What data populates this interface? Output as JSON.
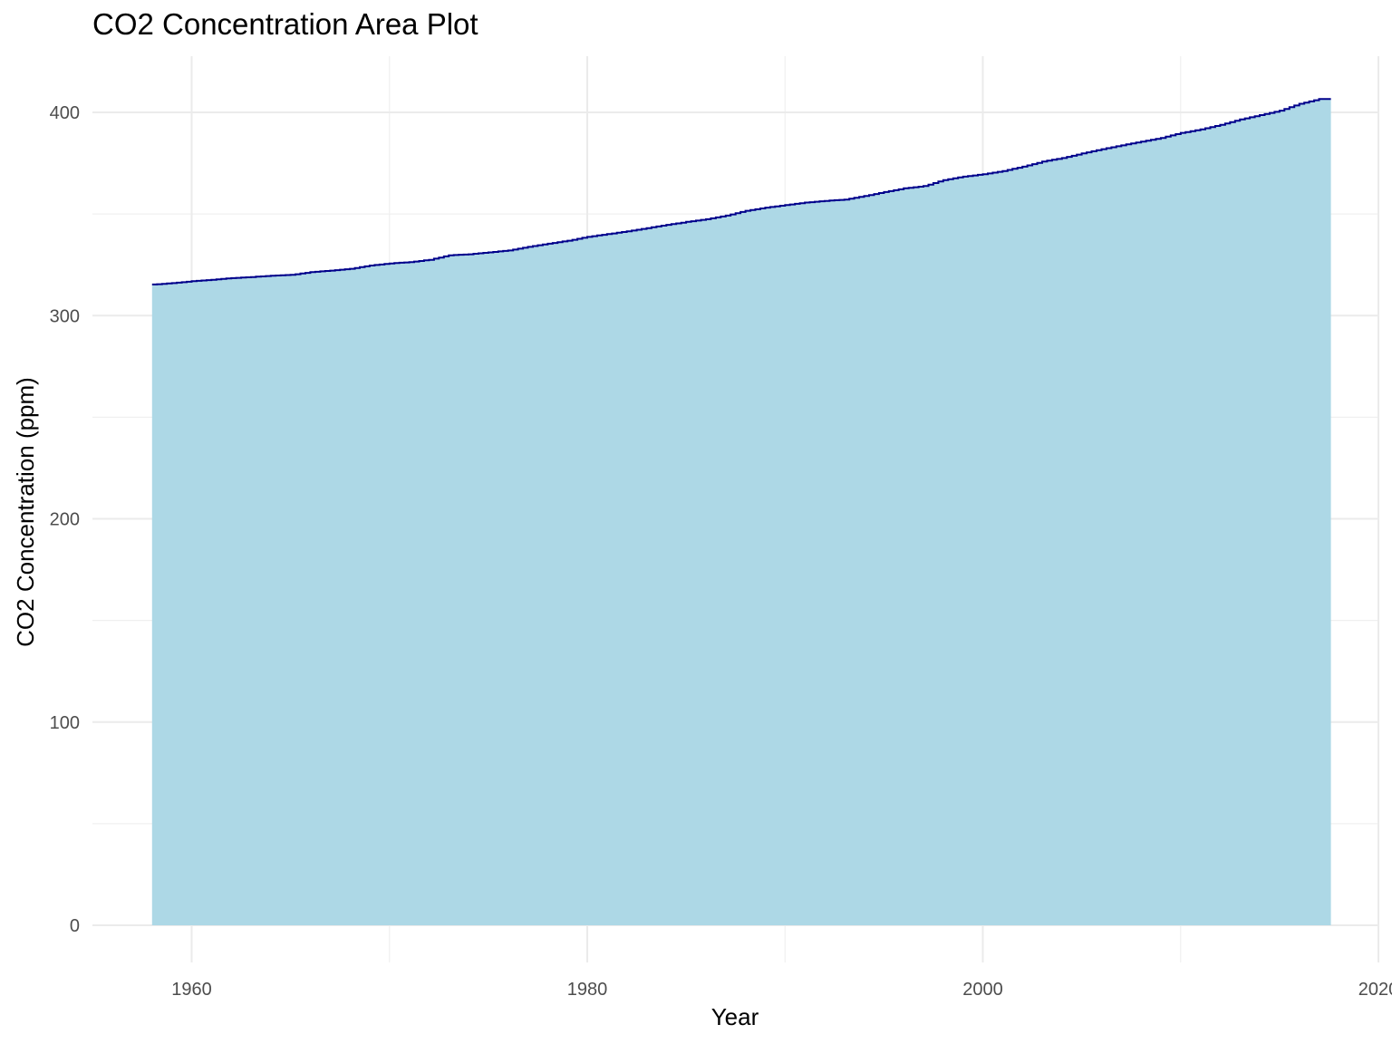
{
  "chart_data": {
    "type": "area",
    "title": "CO2 Concentration Area Plot",
    "xlabel": "Year",
    "ylabel": "CO2 Concentration (ppm)",
    "xlim": [
      1955,
      2020
    ],
    "ylim": [
      0,
      427
    ],
    "x_ticks": [
      1960,
      1980,
      2000,
      2020
    ],
    "x_tick_labels": [
      "1960",
      "1980",
      "2000",
      "2020"
    ],
    "y_ticks": [
      0,
      100,
      200,
      300,
      400
    ],
    "y_tick_labels": [
      "0",
      "100",
      "200",
      "300",
      "400"
    ],
    "grid": true,
    "legend": "none",
    "fill_color": "#add8e6",
    "line_color": "#00008b",
    "series": [
      {
        "x": [
          1958,
          1959,
          1960,
          1961,
          1962,
          1963,
          1964,
          1965,
          1966,
          1967,
          1968,
          1969,
          1970,
          1971,
          1972,
          1973,
          1974,
          1975,
          1976,
          1977,
          1978,
          1979,
          1980,
          1981,
          1982,
          1983,
          1984,
          1985,
          1986,
          1987,
          1988,
          1989,
          1990,
          1991,
          1992,
          1993,
          1994,
          1995,
          1996,
          1997,
          1998,
          1999,
          2000,
          2001,
          2002,
          2003,
          2004,
          2005,
          2006,
          2007,
          2008,
          2009,
          2010,
          2011,
          2012,
          2013,
          2014,
          2015,
          2016,
          2017
        ],
        "values": [
          315.3,
          315.97,
          316.91,
          317.64,
          318.45,
          318.99,
          319.62,
          320.04,
          321.38,
          322.16,
          323.04,
          324.62,
          325.68,
          326.32,
          327.45,
          329.68,
          330.18,
          331.11,
          332.04,
          333.83,
          335.4,
          336.84,
          338.75,
          340.11,
          341.45,
          343.05,
          344.65,
          346.12,
          347.42,
          349.19,
          351.57,
          353.12,
          354.39,
          355.61,
          356.45,
          357.1,
          358.83,
          360.82,
          362.61,
          363.73,
          366.7,
          368.38,
          369.55,
          371.14,
          373.28,
          375.8,
          377.52,
          379.8,
          381.9,
          383.79,
          385.6,
          387.43,
          389.9,
          391.65,
          393.85,
          396.52,
          398.65,
          400.83,
          404.24,
          406.55
        ]
      }
    ]
  }
}
